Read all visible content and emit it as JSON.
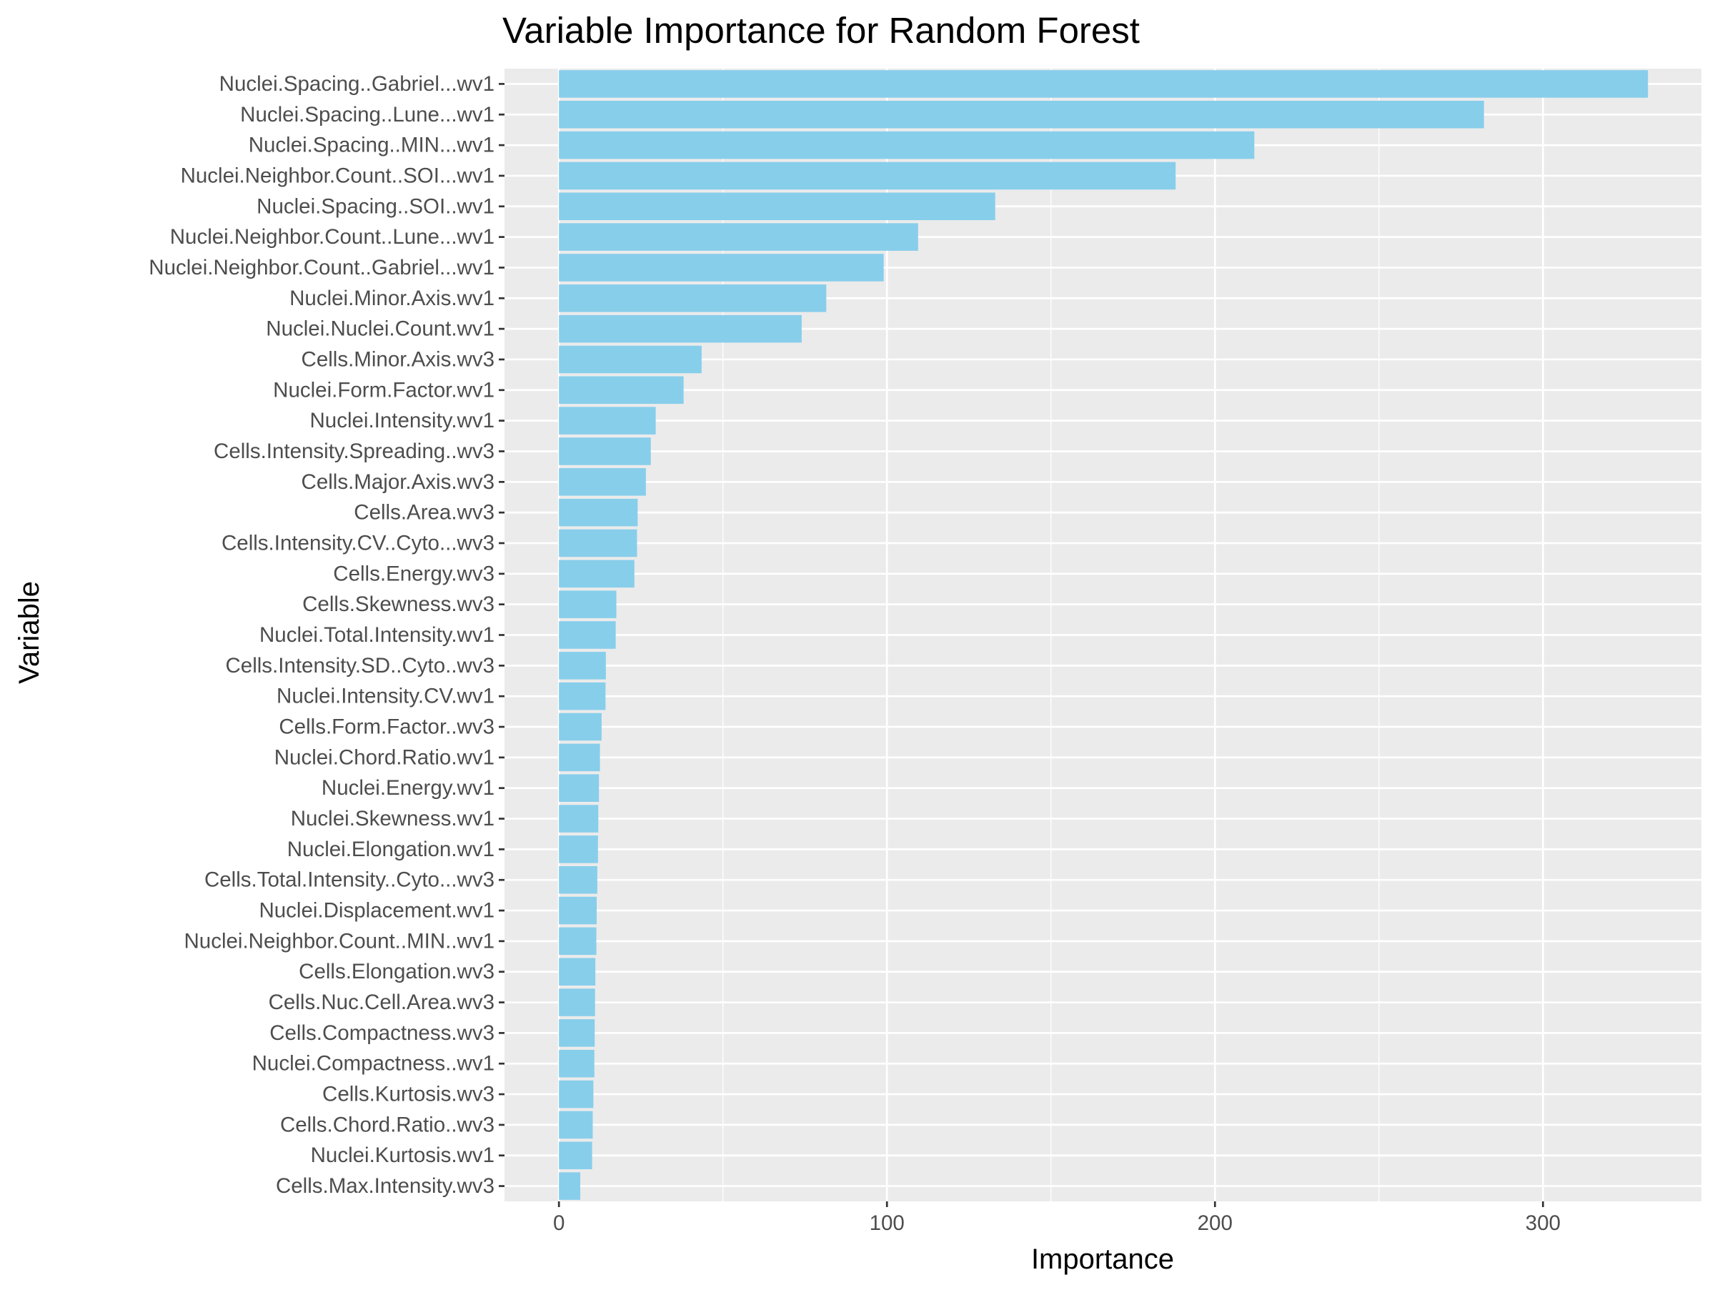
{
  "chart_data": {
    "type": "bar",
    "orientation": "horizontal",
    "title": "Variable Importance for Random Forest",
    "xlabel": "Importance",
    "ylabel": "Variable",
    "xlim": [
      -16.6,
      348.3
    ],
    "xticks": [
      0,
      100,
      200,
      300
    ],
    "grid": true,
    "legend": "none",
    "bar_color": "#87ceeb",
    "panel_color": "#ebebeb",
    "grid_color": "#ffffff",
    "categories": [
      "Nuclei.Spacing..Gabriel...wv1",
      "Nuclei.Spacing..Lune...wv1",
      "Nuclei.Spacing..MIN...wv1",
      "Nuclei.Neighbor.Count..SOI...wv1",
      "Nuclei.Spacing..SOI..wv1",
      "Nuclei.Neighbor.Count..Lune...wv1",
      "Nuclei.Neighbor.Count..Gabriel...wv1",
      "Nuclei.Minor.Axis.wv1",
      "Nuclei.Nuclei.Count.wv1",
      "Cells.Minor.Axis.wv3",
      "Nuclei.Form.Factor.wv1",
      "Nuclei.Intensity.wv1",
      "Cells.Intensity.Spreading..wv3",
      "Cells.Major.Axis.wv3",
      "Cells.Area.wv3",
      "Cells.Intensity.CV..Cyto...wv3",
      "Cells.Energy.wv3",
      "Cells.Skewness.wv3",
      "Nuclei.Total.Intensity.wv1",
      "Cells.Intensity.SD..Cyto..wv3",
      "Nuclei.Intensity.CV.wv1",
      "Cells.Form.Factor..wv3",
      "Nuclei.Chord.Ratio.wv1",
      "Nuclei.Energy.wv1",
      "Nuclei.Skewness.wv1",
      "Nuclei.Elongation.wv1",
      "Cells.Total.Intensity..Cyto...wv3",
      "Nuclei.Displacement.wv1",
      "Nuclei.Neighbor.Count..MIN..wv1",
      "Cells.Elongation.wv3",
      "Cells.Nuc.Cell.Area.wv3",
      "Cells.Compactness.wv3",
      "Nuclei.Compactness..wv1",
      "Cells.Kurtosis.wv3",
      "Cells.Chord.Ratio..wv3",
      "Nuclei.Kurtosis.wv1",
      "Cells.Max.Intensity.wv3"
    ],
    "values": [
      332,
      282,
      212,
      188,
      133,
      109.5,
      99,
      81.5,
      74,
      43.5,
      38,
      29.5,
      28,
      26.5,
      24,
      23.8,
      23,
      17.5,
      17.3,
      14.3,
      14.2,
      13,
      12.5,
      12.2,
      12,
      11.9,
      11.7,
      11.5,
      11.4,
      11.1,
      11,
      10.9,
      10.8,
      10.5,
      10.3,
      10.1,
      6.5
    ]
  }
}
